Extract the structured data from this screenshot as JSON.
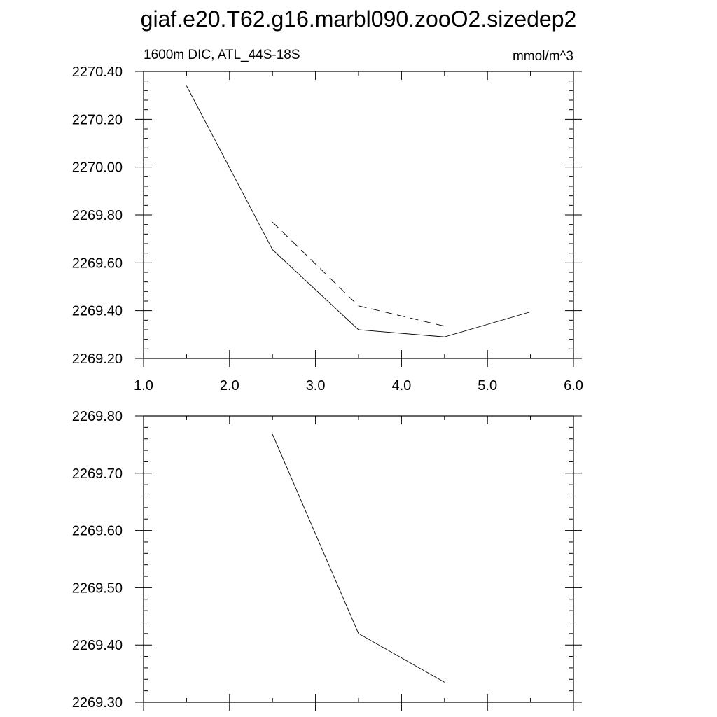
{
  "title": "giaf.e20.T62.g16.marbl090.zooO2.sizedep2",
  "chart_data": [
    {
      "type": "line",
      "left_string": "1600m DIC, ATL_44S-18S",
      "right_string": "mmol/m^3",
      "xlim": [
        1.0,
        6.0
      ],
      "ylim": [
        2269.2,
        2270.4
      ],
      "x_ticks": [
        1.0,
        2.0,
        3.0,
        4.0,
        5.0,
        6.0
      ],
      "x_tick_labels": [
        "1.0",
        "2.0",
        "3.0",
        "4.0",
        "5.0",
        "6.0"
      ],
      "y_ticks": [
        2269.2,
        2269.4,
        2269.6,
        2269.8,
        2270.0,
        2270.2,
        2270.4
      ],
      "y_tick_labels": [
        "2269.20",
        "2269.40",
        "2269.60",
        "2269.80",
        "2270.00",
        "2270.20",
        "2270.40"
      ],
      "grid": false,
      "series": [
        {
          "style": "solid",
          "x": [
            1.5,
            2.5,
            3.5,
            4.5,
            5.5
          ],
          "values": [
            2270.34,
            2269.655,
            2269.32,
            2269.29,
            2269.395
          ]
        },
        {
          "style": "dashed",
          "x": [
            2.5,
            3.5,
            4.5
          ],
          "values": [
            2269.77,
            2269.42,
            2269.335
          ]
        }
      ]
    },
    {
      "type": "line",
      "left_string": "",
      "right_string": "",
      "xlim": [
        1.0,
        6.0
      ],
      "ylim": [
        2269.3,
        2269.8
      ],
      "x_ticks": [
        1.0,
        2.0,
        3.0,
        4.0,
        5.0,
        6.0
      ],
      "x_tick_labels": [],
      "y_ticks": [
        2269.3,
        2269.4,
        2269.5,
        2269.6,
        2269.7,
        2269.8
      ],
      "y_tick_labels": [
        "2269.30",
        "2269.40",
        "2269.50",
        "2269.60",
        "2269.70",
        "2269.80"
      ],
      "grid": false,
      "series": [
        {
          "style": "solid",
          "x": [
            2.5,
            3.5,
            4.5
          ],
          "values": [
            2269.768,
            2269.42,
            2269.335
          ]
        }
      ]
    }
  ]
}
